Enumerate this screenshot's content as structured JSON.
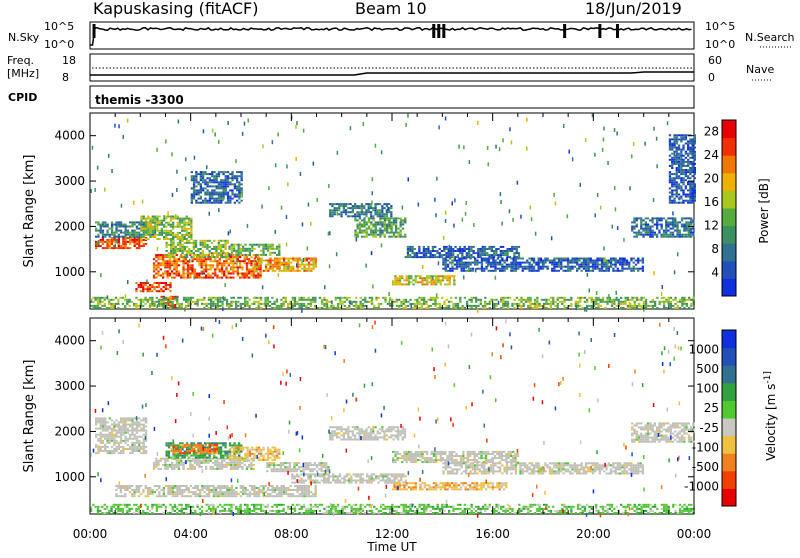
{
  "header": {
    "station": "Kapuskasing (fitACF)",
    "beam": "Beam 10",
    "date": "18/Jun/2019"
  },
  "top_panels": {
    "nsky": {
      "label": "N.Sky",
      "ticks": [
        "10^5",
        "10^0"
      ]
    },
    "nsearch": {
      "label": "N.Search",
      "ticks": [
        "10^5",
        "10^0"
      ]
    },
    "freq": {
      "label_line1": "Freq.",
      "label_line2": "[MHz]",
      "ticks": [
        "18",
        "8"
      ]
    },
    "nave": {
      "label": "Nave",
      "ticks": [
        "60",
        "0"
      ]
    },
    "cpid": {
      "label": "CPID",
      "value": "themis -3300"
    }
  },
  "colors": {
    "power_scale": [
      "#1030e0",
      "#2050b8",
      "#307090",
      "#3c9060",
      "#55aa40",
      "#a8c820",
      "#f0b000",
      "#f07800",
      "#f03000",
      "#e80000"
    ],
    "velocity_scale": [
      "#e80000",
      "#f04000",
      "#f08020",
      "#f0c040",
      "#c8c8c0",
      "#50c830",
      "#30a040",
      "#307090",
      "#2050b8",
      "#1030e0"
    ],
    "ground_scatter": "#c0c0b8"
  },
  "chart_data": [
    {
      "type": "heatmap",
      "name": "power",
      "ylabel": "Slant Range [km]",
      "xlabel": "",
      "x_ticks": [
        "00:00",
        "04:00",
        "08:00",
        "12:00",
        "16:00",
        "20:00",
        "00:00"
      ],
      "y_ticks": [
        1000,
        2000,
        3000,
        4000
      ],
      "ylim": [
        180,
        4500
      ],
      "xlim_hours": [
        0,
        24
      ],
      "colorbar": {
        "label": "Power [dB]",
        "ticks": [
          4,
          8,
          12,
          16,
          20,
          24,
          28
        ],
        "range": [
          0,
          30
        ]
      },
      "echo_bands": [
        {
          "t": [
            0.2,
            2.2
          ],
          "r": [
            1500,
            1750
          ],
          "level": 25
        },
        {
          "t": [
            0.2,
            2.5
          ],
          "r": [
            1750,
            2100
          ],
          "level": 9
        },
        {
          "t": [
            2.0,
            4.0
          ],
          "r": [
            1700,
            2200
          ],
          "level": 15
        },
        {
          "t": [
            2.5,
            6.8
          ],
          "r": [
            850,
            1350
          ],
          "level": 24
        },
        {
          "t": [
            3.0,
            5.5
          ],
          "r": [
            1300,
            1700
          ],
          "level": 14
        },
        {
          "t": [
            5.5,
            7.5
          ],
          "r": [
            1350,
            1600
          ],
          "level": 13
        },
        {
          "t": [
            6.5,
            9.0
          ],
          "r": [
            1000,
            1300
          ],
          "level": 20
        },
        {
          "t": [
            1.8,
            3.2
          ],
          "r": [
            550,
            750
          ],
          "level": 26
        },
        {
          "t": [
            2.8,
            3.5
          ],
          "r": [
            200,
            450
          ],
          "level": 27
        },
        {
          "t": [
            9.5,
            12.0
          ],
          "r": [
            2200,
            2500
          ],
          "level": 8
        },
        {
          "t": [
            10.5,
            12.5
          ],
          "r": [
            1750,
            2200
          ],
          "level": 12
        },
        {
          "t": [
            12.0,
            14.5
          ],
          "r": [
            700,
            900
          ],
          "level": 18
        },
        {
          "t": [
            12.5,
            17.0
          ],
          "r": [
            1300,
            1550
          ],
          "level": 6
        },
        {
          "t": [
            14.0,
            22.0
          ],
          "r": [
            1000,
            1300
          ],
          "level": 5
        },
        {
          "t": [
            21.5,
            24.0
          ],
          "r": [
            1750,
            2200
          ],
          "level": 7
        },
        {
          "t": [
            0.0,
            24.0
          ],
          "r": [
            180,
            450
          ],
          "level": 14
        },
        {
          "t": [
            4.0,
            6.0
          ],
          "r": [
            2500,
            3200
          ],
          "level": 6
        },
        {
          "t": [
            23.0,
            24.0
          ],
          "r": [
            2500,
            4000
          ],
          "level": 5
        }
      ]
    },
    {
      "type": "heatmap",
      "name": "velocity",
      "ylabel": "Slant Range [km]",
      "xlabel": "Time UT",
      "x_ticks": [
        "00:00",
        "04:00",
        "08:00",
        "12:00",
        "16:00",
        "20:00",
        "00:00"
      ],
      "y_ticks": [
        1000,
        2000,
        3000,
        4000
      ],
      "ylim": [
        180,
        4500
      ],
      "xlim_hours": [
        0,
        24
      ],
      "colorbar": {
        "label": "Velocity [m s^-1]",
        "ticks": [
          "1000",
          "500",
          "100",
          "25",
          "-25",
          "-100",
          "-500",
          "-1000"
        ]
      },
      "echo_bands": [
        {
          "t": [
            0.2,
            2.2
          ],
          "r": [
            1500,
            2300
          ],
          "class": 4
        },
        {
          "t": [
            2.5,
            6.5
          ],
          "r": [
            1150,
            1400
          ],
          "class": 4
        },
        {
          "t": [
            3.0,
            6.0
          ],
          "r": [
            1400,
            1750
          ],
          "class": 6
        },
        {
          "t": [
            3.2,
            5.0
          ],
          "r": [
            1500,
            1700
          ],
          "class": 2
        },
        {
          "t": [
            5.5,
            7.5
          ],
          "r": [
            1350,
            1650
          ],
          "class": 3
        },
        {
          "t": [
            7.0,
            9.5
          ],
          "r": [
            1100,
            1300
          ],
          "class": 4
        },
        {
          "t": [
            1.0,
            9.0
          ],
          "r": [
            550,
            800
          ],
          "class": 4
        },
        {
          "t": [
            8.0,
            12.5
          ],
          "r": [
            850,
            1050
          ],
          "class": 4
        },
        {
          "t": [
            9.5,
            12.5
          ],
          "r": [
            1800,
            2100
          ],
          "class": 4
        },
        {
          "t": [
            12.0,
            17.0
          ],
          "r": [
            1300,
            1550
          ],
          "class": 4
        },
        {
          "t": [
            14.0,
            22.0
          ],
          "r": [
            1050,
            1300
          ],
          "class": 4
        },
        {
          "t": [
            12.0,
            16.5
          ],
          "r": [
            700,
            850
          ],
          "class": 3
        },
        {
          "t": [
            21.5,
            24.0
          ],
          "r": [
            1750,
            2200
          ],
          "class": 4
        },
        {
          "t": [
            0.0,
            24.0
          ],
          "r": [
            180,
            400
          ],
          "class": 5
        }
      ]
    }
  ]
}
